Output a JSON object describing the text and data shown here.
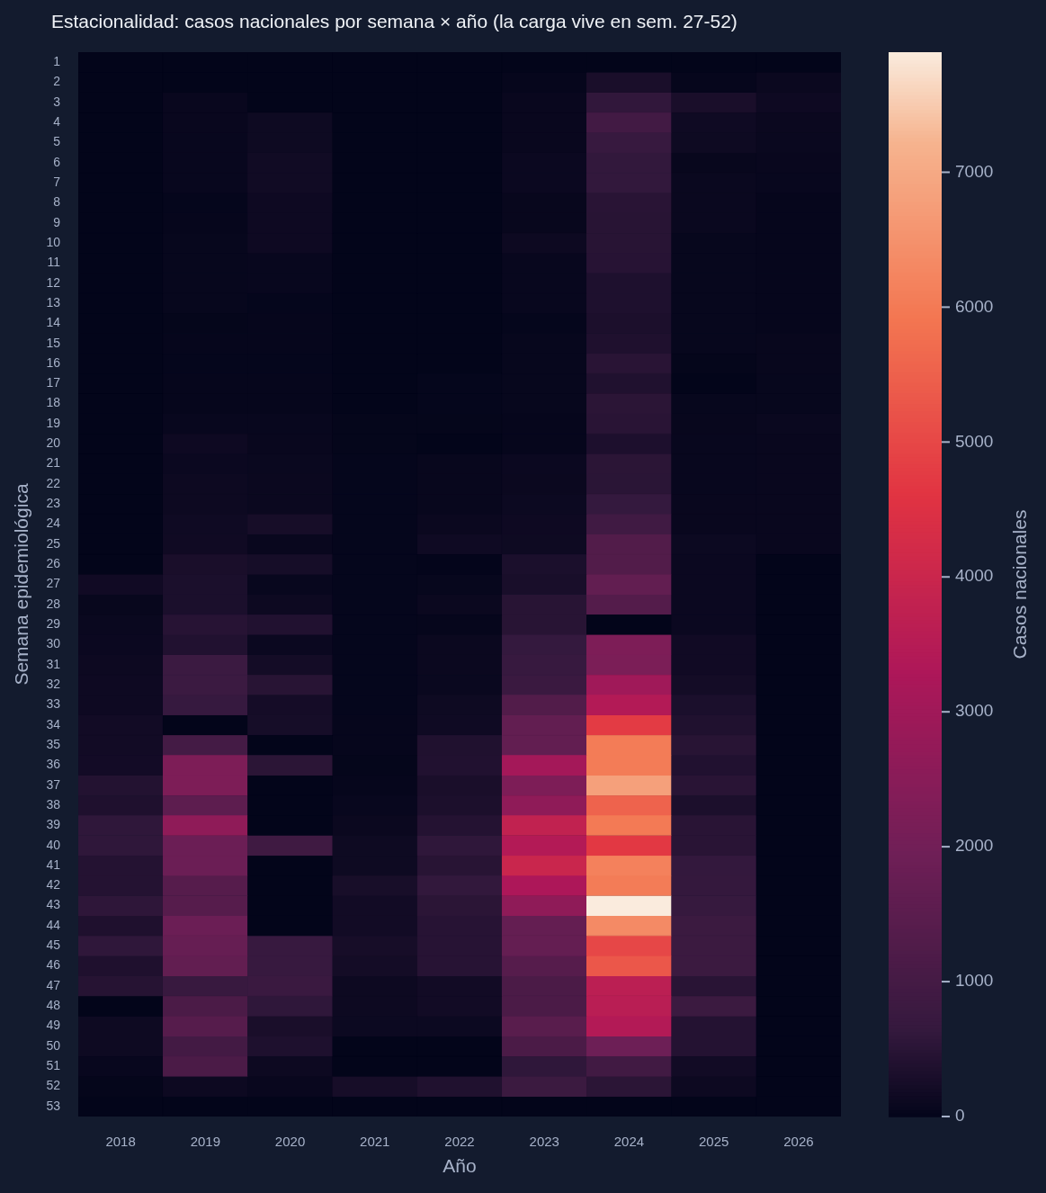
{
  "chart_data": {
    "type": "heatmap",
    "title": "Estacionalidad: casos nacionales por semana × año (la carga vive en sem. 27-52)",
    "xlabel": "Año",
    "ylabel": "Semana epidemiológica",
    "clabel": "Casos nacionales",
    "categories": [
      "2018",
      "2019",
      "2020",
      "2021",
      "2022",
      "2023",
      "2024",
      "2025",
      "2026"
    ],
    "y_categories": [
      "1",
      "2",
      "3",
      "4",
      "5",
      "6",
      "7",
      "8",
      "9",
      "10",
      "11",
      "12",
      "13",
      "14",
      "15",
      "16",
      "17",
      "18",
      "19",
      "20",
      "21",
      "22",
      "23",
      "24",
      "25",
      "26",
      "27",
      "28",
      "29",
      "30",
      "31",
      "32",
      "33",
      "34",
      "35",
      "36",
      "37",
      "38",
      "39",
      "40",
      "41",
      "42",
      "43",
      "44",
      "45",
      "46",
      "47",
      "48",
      "49",
      "50",
      "51",
      "52",
      "53"
    ],
    "cells": [
      [
        0,
        0,
        0,
        0,
        0,
        0,
        0,
        0,
        0
      ],
      [
        0,
        0,
        0,
        0,
        0,
        40,
        300,
        40,
        100
      ],
      [
        0,
        80,
        0,
        0,
        0,
        80,
        600,
        300,
        140
      ],
      [
        0,
        80,
        150,
        0,
        0,
        80,
        950,
        160,
        100
      ],
      [
        0,
        70,
        150,
        0,
        0,
        80,
        700,
        150,
        90
      ],
      [
        0,
        70,
        190,
        0,
        0,
        110,
        620,
        60,
        80
      ],
      [
        0,
        70,
        190,
        0,
        0,
        110,
        620,
        90,
        70
      ],
      [
        0,
        30,
        140,
        0,
        0,
        60,
        500,
        90,
        40
      ],
      [
        0,
        40,
        140,
        0,
        0,
        60,
        480,
        90,
        40
      ],
      [
        0,
        50,
        140,
        0,
        0,
        130,
        480,
        50,
        40
      ],
      [
        0,
        50,
        70,
        0,
        0,
        70,
        470,
        50,
        40
      ],
      [
        0,
        50,
        70,
        0,
        0,
        70,
        360,
        50,
        40
      ],
      [
        0,
        50,
        30,
        0,
        0,
        70,
        360,
        50,
        40
      ],
      [
        0,
        20,
        40,
        0,
        0,
        30,
        330,
        50,
        40
      ],
      [
        0,
        40,
        40,
        0,
        0,
        50,
        370,
        50,
        60
      ],
      [
        0,
        30,
        30,
        0,
        0,
        50,
        500,
        20,
        60
      ],
      [
        0,
        40,
        40,
        0,
        30,
        50,
        380,
        0,
        50
      ],
      [
        0,
        40,
        40,
        0,
        30,
        50,
        520,
        50,
        50
      ],
      [
        0,
        70,
        70,
        20,
        20,
        40,
        500,
        60,
        90
      ],
      [
        0,
        140,
        80,
        20,
        0,
        40,
        340,
        70,
        80
      ],
      [
        0,
        110,
        90,
        30,
        60,
        110,
        520,
        70,
        80
      ],
      [
        0,
        130,
        100,
        30,
        60,
        100,
        510,
        70,
        80
      ],
      [
        0,
        130,
        100,
        30,
        60,
        120,
        650,
        80,
        80
      ],
      [
        0,
        160,
        260,
        30,
        100,
        140,
        900,
        80,
        80
      ],
      [
        0,
        170,
        80,
        30,
        160,
        150,
        1300,
        120,
        80
      ],
      [
        0,
        300,
        250,
        30,
        10,
        320,
        1300,
        110,
        0
      ],
      [
        180,
        320,
        70,
        30,
        50,
        290,
        1650,
        110,
        0
      ],
      [
        60,
        320,
        130,
        30,
        100,
        480,
        1350,
        110,
        0
      ],
      [
        90,
        470,
        400,
        30,
        40,
        480,
        0,
        110,
        0
      ],
      [
        110,
        400,
        110,
        30,
        100,
        650,
        2250,
        180,
        0
      ],
      [
        130,
        800,
        220,
        30,
        100,
        700,
        2200,
        180,
        0
      ],
      [
        140,
        800,
        480,
        30,
        90,
        760,
        3000,
        220,
        0
      ],
      [
        140,
        690,
        240,
        30,
        150,
        1300,
        3450,
        320,
        0
      ],
      [
        200,
        0,
        250,
        40,
        160,
        1650,
        4750,
        380,
        0
      ],
      [
        200,
        1000,
        0,
        40,
        380,
        1650,
        6050,
        480,
        0
      ],
      [
        210,
        2250,
        520,
        20,
        400,
        3100,
        6050,
        400,
        0
      ],
      [
        420,
        2250,
        0,
        40,
        300,
        2250,
        6800,
        500,
        0
      ],
      [
        370,
        1550,
        0,
        70,
        330,
        2650,
        5550,
        330,
        0
      ],
      [
        580,
        2650,
        0,
        100,
        430,
        3800,
        6000,
        500,
        0
      ],
      [
        580,
        1850,
        870,
        150,
        580,
        3450,
        4700,
        500,
        0
      ],
      [
        430,
        1850,
        0,
        150,
        480,
        4000,
        6150,
        630,
        0
      ],
      [
        430,
        1400,
        0,
        280,
        620,
        3300,
        6050,
        640,
        0
      ],
      [
        570,
        1400,
        0,
        200,
        520,
        2650,
        7890,
        680,
        0
      ],
      [
        370,
        1850,
        0,
        200,
        470,
        1700,
        6350,
        780,
        0
      ],
      [
        580,
        1750,
        700,
        260,
        470,
        1700,
        5000,
        780,
        0
      ],
      [
        370,
        1650,
        700,
        220,
        470,
        1400,
        5300,
        780,
        0
      ],
      [
        460,
        720,
        760,
        130,
        200,
        1150,
        3650,
        500,
        0
      ],
      [
        0,
        1150,
        580,
        130,
        200,
        1150,
        3600,
        780,
        0
      ],
      [
        150,
        1400,
        300,
        120,
        120,
        1450,
        3450,
        440,
        0
      ],
      [
        150,
        970,
        360,
        0,
        0,
        1150,
        1900,
        440,
        0
      ],
      [
        70,
        1150,
        130,
        0,
        0,
        580,
        930,
        200,
        0
      ],
      [
        20,
        130,
        80,
        260,
        380,
        780,
        520,
        130,
        0
      ],
      [
        0,
        0,
        0,
        0,
        0,
        0,
        0,
        0,
        0
      ]
    ],
    "clim": [
      0,
      7890
    ],
    "cticks": [
      0,
      1000,
      2000,
      3000,
      4000,
      5000,
      6000,
      7000
    ]
  }
}
